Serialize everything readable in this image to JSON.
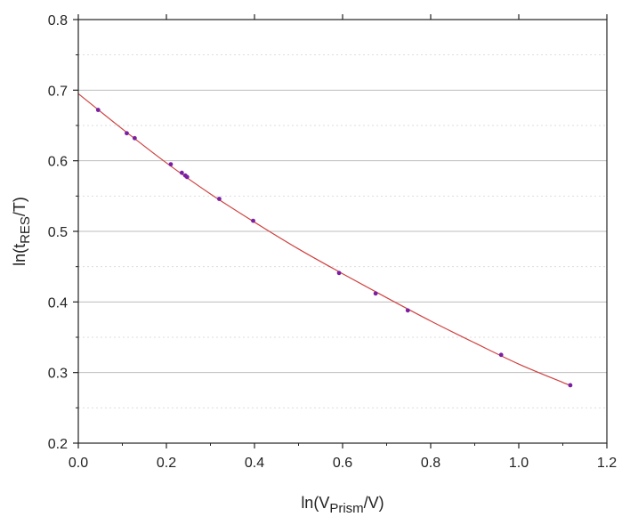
{
  "chart_data": {
    "type": "scatter",
    "title": "",
    "xlabel": {
      "prefix": "ln(V",
      "sub": "Prism",
      "suffix": "/V)"
    },
    "ylabel": {
      "prefix": "ln(t",
      "sub": "RES",
      "suffix": "/T)"
    },
    "xlim": [
      0.0,
      1.2
    ],
    "ylim": [
      0.2,
      0.8
    ],
    "xticks": [
      "0.0",
      "0.2",
      "0.4",
      "0.6",
      "0.8",
      "1.0",
      "1.2"
    ],
    "yticks": [
      "0.2",
      "0.3",
      "0.4",
      "0.5",
      "0.6",
      "0.7",
      "0.8"
    ],
    "grid": {
      "major": true,
      "minor": true
    },
    "legend": "none",
    "colors": {
      "points": "#7a1fa2",
      "fit_line": "#d04040",
      "grid_major": "#bdbdbd",
      "grid_minor": "#dddddd"
    },
    "series": [
      {
        "x": [
          0.045,
          0.11,
          0.128,
          0.21,
          0.235,
          0.243,
          0.247,
          0.32,
          0.397,
          0.592,
          0.675,
          0.748,
          0.96,
          1.117
        ],
        "y": [
          0.672,
          0.639,
          0.632,
          0.595,
          0.583,
          0.579,
          0.577,
          0.546,
          0.515,
          0.441,
          0.412,
          0.388,
          0.325,
          0.282
        ]
      }
    ],
    "fit": {
      "x": [
        0.0,
        0.1,
        0.2,
        0.3,
        0.4,
        0.5,
        0.6,
        0.7,
        0.8,
        0.9,
        1.0,
        1.1,
        1.12
      ],
      "y": [
        0.695,
        0.645,
        0.597,
        0.553,
        0.513,
        0.475,
        0.44,
        0.406,
        0.373,
        0.342,
        0.312,
        0.286,
        0.281
      ]
    }
  }
}
